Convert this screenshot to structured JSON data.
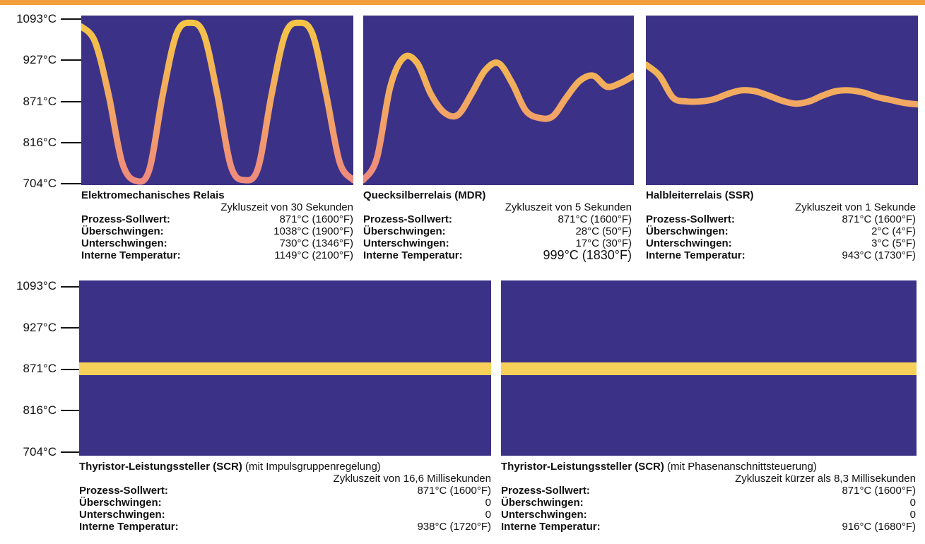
{
  "colors": {
    "top_bar": "#f29e3d",
    "plot_background": "#3b3287",
    "curve_high": "#f5c645",
    "curve_low": "#ef8a7e",
    "flat_line": "#f7d05a"
  },
  "labels": {
    "setpoint": "Prozess-Sollwert:",
    "overshoot": "Überschwingen:",
    "undershoot": "Unterschwingen:",
    "internal_temp": "Interne Temperatur:"
  },
  "y_axis": {
    "tick_labels": [
      "1093°C",
      "927°C",
      "871°C",
      "816°C",
      "704°C"
    ]
  },
  "panels": [
    {
      "title": "Elektromechanisches Relais",
      "note": "",
      "cycle": "Zykluszeit von 30 Sekunden",
      "setpoint": "871°C (1600°F)",
      "overshoot": "1038°C (1900°F)",
      "undershoot": "730°C (1346°F)",
      "internal_temp": "1149°C (2100°F)"
    },
    {
      "title": "Quecksilberrelais (MDR)",
      "note": "",
      "cycle": "Zykluszeit von 5 Sekunden",
      "setpoint": "871°C (1600°F)",
      "overshoot": "28°C (50°F)",
      "undershoot": "17°C (30°F)",
      "internal_temp": "999°C (1830°F)"
    },
    {
      "title": "Halbleiterrelais (SSR)",
      "note": "",
      "cycle": "Zykluszeit von 1 Sekunde",
      "setpoint": "871°C (1600°F)",
      "overshoot": "2°C (4°F)",
      "undershoot": "3°C (5°F)",
      "internal_temp": "943°C (1730°F)"
    },
    {
      "title": "Thyristor-Leistungssteller (SCR)",
      "note": " (mit Impulsgruppenregelung)",
      "cycle": "Zykluszeit von 16,6 Millisekunden",
      "setpoint": "871°C (1600°F)",
      "overshoot": "0",
      "undershoot": "0",
      "internal_temp": "938°C (1720°F)"
    },
    {
      "title": "Thyristor-Leistungssteller (SCR)",
      "note": " (mit Phasenanschnittsteuerung)",
      "cycle": "Zykluszeit kürzer als 8,3 Millisekunden",
      "setpoint": "871°C (1600°F)",
      "overshoot": "0",
      "undershoot": "0",
      "internal_temp": "916°C (1680°F)"
    }
  ],
  "chart_data": [
    {
      "type": "line",
      "y_ticks": [
        "1093°C",
        "927°C",
        "871°C",
        "816°C",
        "704°C"
      ],
      "title": "Elektromechanisches Relais",
      "x": [
        0,
        0.05,
        0.1,
        0.15,
        0.2,
        0.25,
        0.3,
        0.35,
        0.4,
        0.45,
        0.5,
        0.55,
        0.6,
        0.65,
        0.7,
        0.75,
        0.8,
        0.85,
        0.9,
        0.95,
        1.0
      ],
      "y": [
        1060,
        1000,
        880,
        760,
        710,
        740,
        880,
        1030,
        1075,
        1030,
        880,
        750,
        712,
        745,
        880,
        1030,
        1075,
        1030,
        880,
        760,
        712
      ]
    },
    {
      "type": "line",
      "y_ticks": [
        "1093°C",
        "927°C",
        "871°C",
        "816°C",
        "704°C"
      ],
      "title": "Quecksilberrelais (MDR)",
      "x": [
        0,
        0.05,
        0.1,
        0.15,
        0.2,
        0.25,
        0.3,
        0.35,
        0.4,
        0.45,
        0.5,
        0.55,
        0.6,
        0.65,
        0.7,
        0.75,
        0.8,
        0.85,
        0.9,
        0.95,
        1.0
      ],
      "y": [
        712,
        770,
        890,
        935,
        922,
        880,
        855,
        852,
        880,
        912,
        922,
        895,
        858,
        848,
        850,
        875,
        898,
        905,
        890,
        895,
        905
      ]
    },
    {
      "type": "line",
      "y_ticks": [
        "1093°C",
        "927°C",
        "871°C",
        "816°C",
        "704°C"
      ],
      "title": "Halbleiterrelais (SSR)",
      "x": [
        0,
        0.05,
        0.1,
        0.15,
        0.2,
        0.25,
        0.3,
        0.35,
        0.4,
        0.45,
        0.5,
        0.55,
        0.6,
        0.65,
        0.7,
        0.75,
        0.8,
        0.85,
        0.9,
        0.95,
        1.0
      ],
      "y": [
        920,
        905,
        875,
        870,
        870,
        873,
        880,
        885,
        884,
        878,
        871,
        867,
        870,
        878,
        884,
        885,
        882,
        876,
        872,
        868,
        866
      ]
    },
    {
      "type": "line",
      "y_ticks": [
        "1093°C",
        "927°C",
        "871°C",
        "816°C",
        "704°C"
      ],
      "title": "Thyristor-Leistungssteller (SCR) (mit Impulsgruppenregelung)",
      "x": [
        0,
        1
      ],
      "y": [
        871,
        871
      ]
    },
    {
      "type": "line",
      "y_ticks": [
        "1093°C",
        "927°C",
        "871°C",
        "816°C",
        "704°C"
      ],
      "title": "Thyristor-Leistungssteller (SCR) (mit Phasenanschnittsteuerung)",
      "x": [
        0,
        1
      ],
      "y": [
        871,
        871
      ]
    }
  ]
}
